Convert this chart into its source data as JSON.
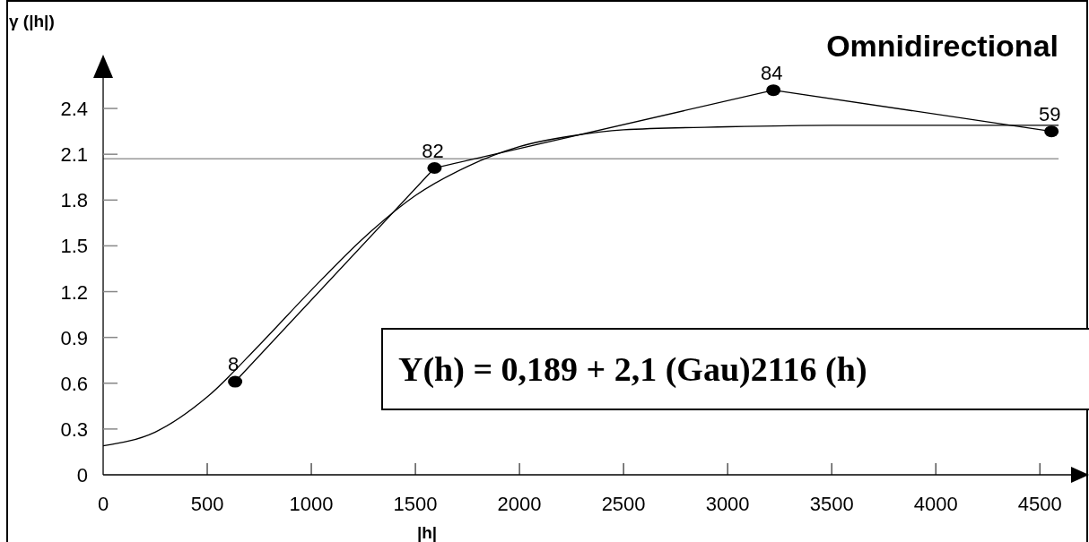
{
  "chart_data": {
    "type": "line",
    "title": "Omnidirectional",
    "xlabel": "|h|",
    "ylabel": "γ (|h|)",
    "xlim": [
      0,
      4650
    ],
    "xticks": [
      0,
      500,
      1000,
      1500,
      2000,
      2500,
      3000,
      3500,
      4000,
      4500
    ],
    "ylim": [
      0,
      2.6
    ],
    "yticks": [
      0,
      0.3,
      0.6,
      0.9,
      1.2,
      1.5,
      1.8,
      2.1,
      2.4
    ],
    "grid": false,
    "series": [
      {
        "color": "#000000",
        "marker": "circle",
        "x": [
          634,
          1592,
          3220,
          4556
        ],
        "values": [
          0.61,
          2.01,
          2.52,
          2.25
        ]
      },
      {
        "color": "#000000",
        "marker": "none",
        "x": [
          0,
          250,
          500,
          750,
          1000,
          1250,
          1500,
          1750,
          2000,
          2250,
          2500,
          3000,
          3500,
          4000,
          4590
        ],
        "values": [
          0.19,
          0.28,
          0.51,
          0.85,
          1.21,
          1.55,
          1.83,
          2.02,
          2.15,
          2.22,
          2.26,
          2.28,
          2.29,
          2.29,
          2.29
        ]
      }
    ],
    "ref_lines": [
      {
        "axis": "y",
        "value": 2.07,
        "color": "#999999"
      }
    ],
    "annotations": [
      {
        "text": "8",
        "x": 634,
        "y": 0.61
      },
      {
        "text": "82",
        "x": 1592,
        "y": 2.01
      },
      {
        "text": "84",
        "x": 3220,
        "y": 2.52
      },
      {
        "text": "59",
        "x": 4556,
        "y": 2.25
      },
      "Y(h) = 0,189 + 2,1 (Gau)2116 (h)"
    ]
  }
}
